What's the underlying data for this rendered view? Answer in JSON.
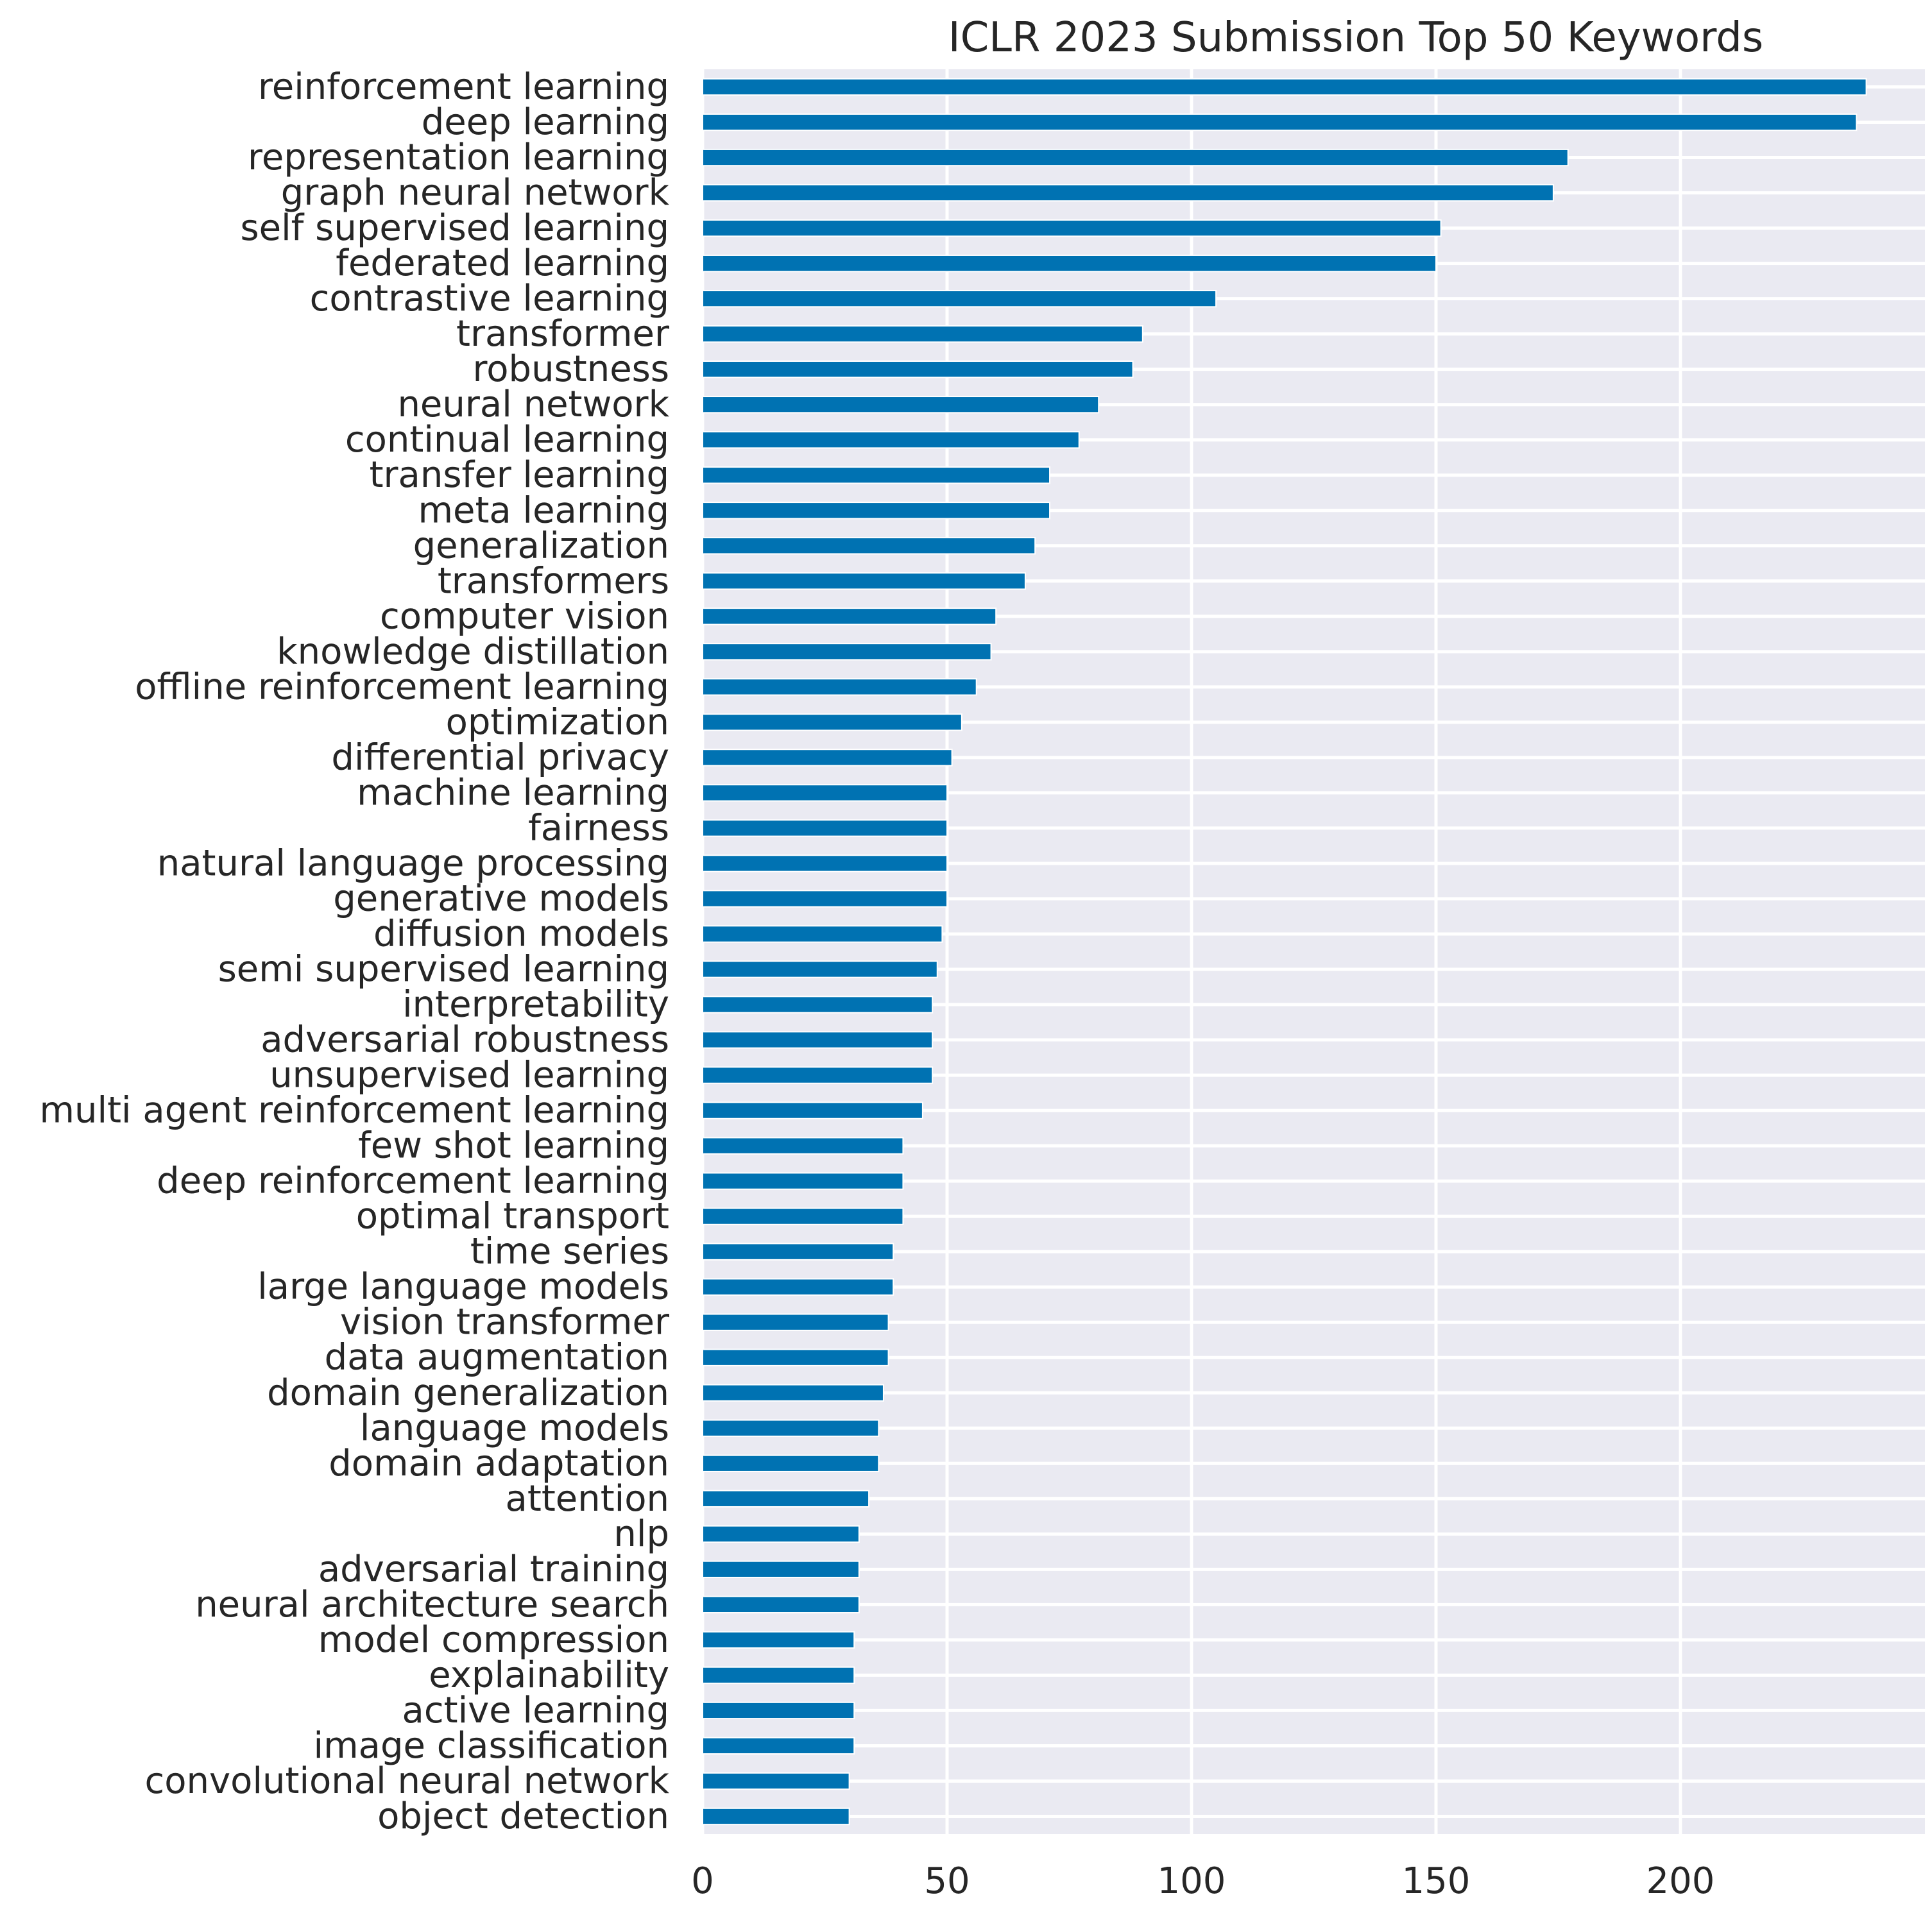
{
  "chart_data": {
    "type": "bar",
    "orientation": "horizontal",
    "title": "ICLR 2023 Submission Top 50 Keywords",
    "xlabel": "",
    "ylabel": "",
    "xlim": [
      0,
      250
    ],
    "xticks": [
      0,
      50,
      100,
      150,
      200
    ],
    "grid": true,
    "legend": "none",
    "colors": {
      "bar": "#0072b2",
      "plot_bg": "#eaeaf2",
      "grid": "#ffffff",
      "text": "#262626"
    },
    "categories": [
      "reinforcement learning",
      "deep learning",
      "representation learning",
      "graph neural network",
      "self supervised learning",
      "federated learning",
      "contrastive learning",
      "transformer",
      "robustness",
      "neural network",
      "continual learning",
      "transfer learning",
      "meta learning",
      "generalization",
      "transformers",
      "computer vision",
      "knowledge distillation",
      "offline reinforcement learning",
      "optimization",
      "differential privacy",
      "machine learning",
      "fairness",
      "natural language processing",
      "generative models",
      "diffusion models",
      "semi supervised learning",
      "interpretability",
      "adversarial robustness",
      "unsupervised learning",
      "multi agent reinforcement learning",
      "few shot learning",
      "deep reinforcement learning",
      "optimal transport",
      "time series",
      "large language models",
      "vision transformer",
      "data augmentation",
      "domain generalization",
      "language models",
      "domain adaptation",
      "attention",
      "nlp",
      "adversarial training",
      "neural architecture search",
      "model compression",
      "explainability",
      "active learning",
      "image classification",
      "convolutional neural network",
      "object detection"
    ],
    "values": [
      238,
      236,
      177,
      174,
      151,
      150,
      105,
      90,
      88,
      81,
      77,
      71,
      71,
      68,
      66,
      60,
      59,
      56,
      53,
      51,
      50,
      50,
      50,
      50,
      49,
      48,
      47,
      47,
      47,
      45,
      41,
      41,
      41,
      39,
      39,
      38,
      38,
      37,
      36,
      36,
      34,
      32,
      32,
      32,
      31,
      31,
      31,
      31,
      30,
      30
    ]
  }
}
